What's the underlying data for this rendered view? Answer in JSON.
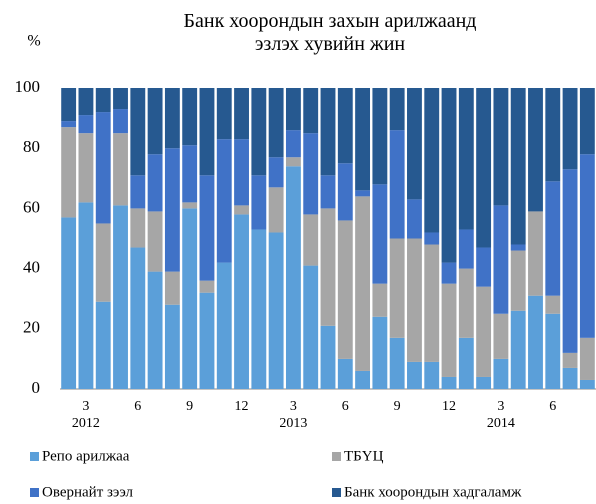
{
  "chart_data": {
    "type": "stacked_bar",
    "title": "Банк хоорондын захын арилжаанд эзлэх хувийн жин",
    "y_label": "%",
    "categories": [
      null,
      "3",
      null,
      null,
      "6",
      null,
      null,
      "9",
      null,
      null,
      "12",
      null,
      null,
      "3",
      null,
      null,
      "6",
      null,
      null,
      "9",
      null,
      null,
      "12",
      null,
      null,
      "3",
      null,
      null,
      "6",
      null,
      null
    ],
    "category_years": [
      null,
      "2012",
      null,
      null,
      null,
      null,
      null,
      null,
      null,
      null,
      null,
      null,
      null,
      "2013",
      null,
      null,
      null,
      null,
      null,
      null,
      null,
      null,
      null,
      null,
      null,
      "2014",
      null,
      null,
      null,
      null,
      null
    ],
    "series": [
      {
        "name": "Репо арилжаа",
        "color": "#5b9fd9",
        "values": [
          57,
          62,
          29,
          61,
          47,
          39,
          28,
          60,
          32,
          42,
          58,
          53,
          52,
          74,
          41,
          21,
          10,
          6,
          24,
          17,
          9,
          9,
          4,
          17,
          4,
          10,
          26,
          31,
          25,
          7,
          3
        ]
      },
      {
        "name": "ТБҮЦ",
        "color": "#a6a6a6",
        "values": [
          30,
          23,
          26,
          24,
          13,
          20,
          11,
          2,
          4,
          0,
          3,
          0,
          15,
          3,
          17,
          39,
          46,
          58,
          11,
          33,
          41,
          39,
          31,
          23,
          30,
          15,
          20,
          28,
          6,
          5,
          14
        ]
      },
      {
        "name": "Овернайт зээл",
        "color": "#4072c7",
        "values": [
          2,
          6,
          37,
          8,
          11,
          19,
          41,
          19,
          35,
          41,
          22,
          18,
          10,
          9,
          27,
          11,
          19,
          2,
          33,
          36,
          13,
          4,
          7,
          13,
          13,
          36,
          2,
          0,
          38,
          61,
          61
        ]
      },
      {
        "name": "Банк хоорондын хадгаламж",
        "color": "#265990",
        "values": [
          11,
          9,
          8,
          7,
          29,
          22,
          20,
          19,
          29,
          17,
          17,
          29,
          23,
          14,
          15,
          29,
          25,
          34,
          32,
          14,
          37,
          48,
          58,
          47,
          53,
          39,
          52,
          41,
          31,
          27,
          22
        ]
      }
    ],
    "ylim": [
      0,
      100
    ],
    "yticks": [
      0,
      20,
      40,
      60,
      80,
      100
    ],
    "grid": false
  }
}
